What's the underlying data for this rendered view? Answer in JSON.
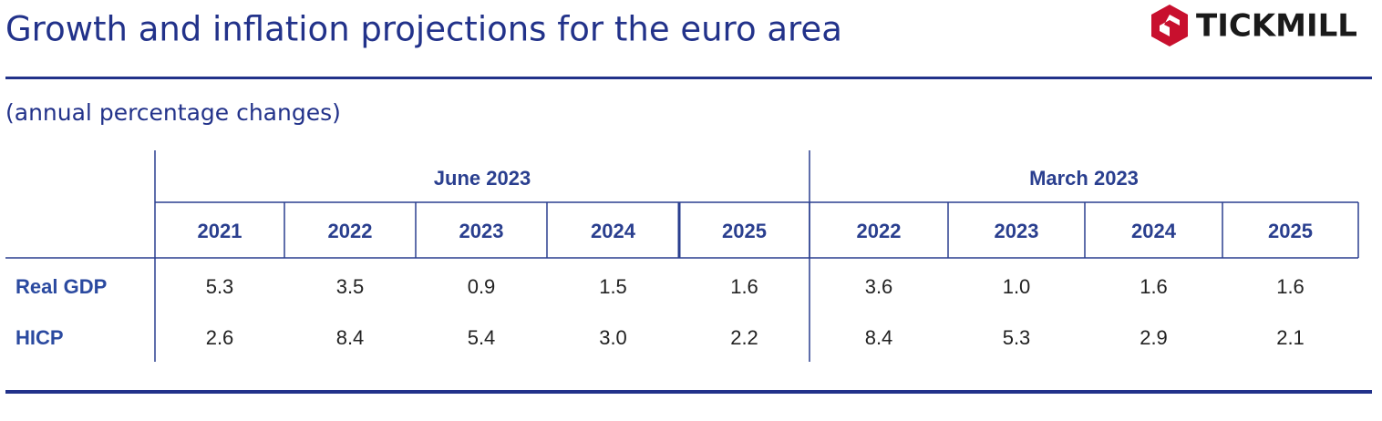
{
  "header": {
    "title": "Growth and inflation projections for the euro area",
    "logo": "TICKMILL"
  },
  "subtitle": "(annual percentage changes)",
  "table": {
    "groups": [
      {
        "label": "June 2023",
        "columns": [
          "2021",
          "2022",
          "2023",
          "2024",
          "2025"
        ]
      },
      {
        "label": "March 2023",
        "columns": [
          "2022",
          "2023",
          "2024",
          "2025"
        ]
      }
    ],
    "rows": [
      {
        "label": "Real GDP",
        "values": [
          "5.3",
          "3.5",
          "0.9",
          "1.5",
          "1.6",
          "3.6",
          "1.0",
          "1.6",
          "1.6"
        ]
      },
      {
        "label": "HICP",
        "values": [
          "2.6",
          "8.4",
          "5.4",
          "3.0",
          "2.2",
          "8.4",
          "5.3",
          "2.9",
          "2.1"
        ]
      }
    ]
  }
}
